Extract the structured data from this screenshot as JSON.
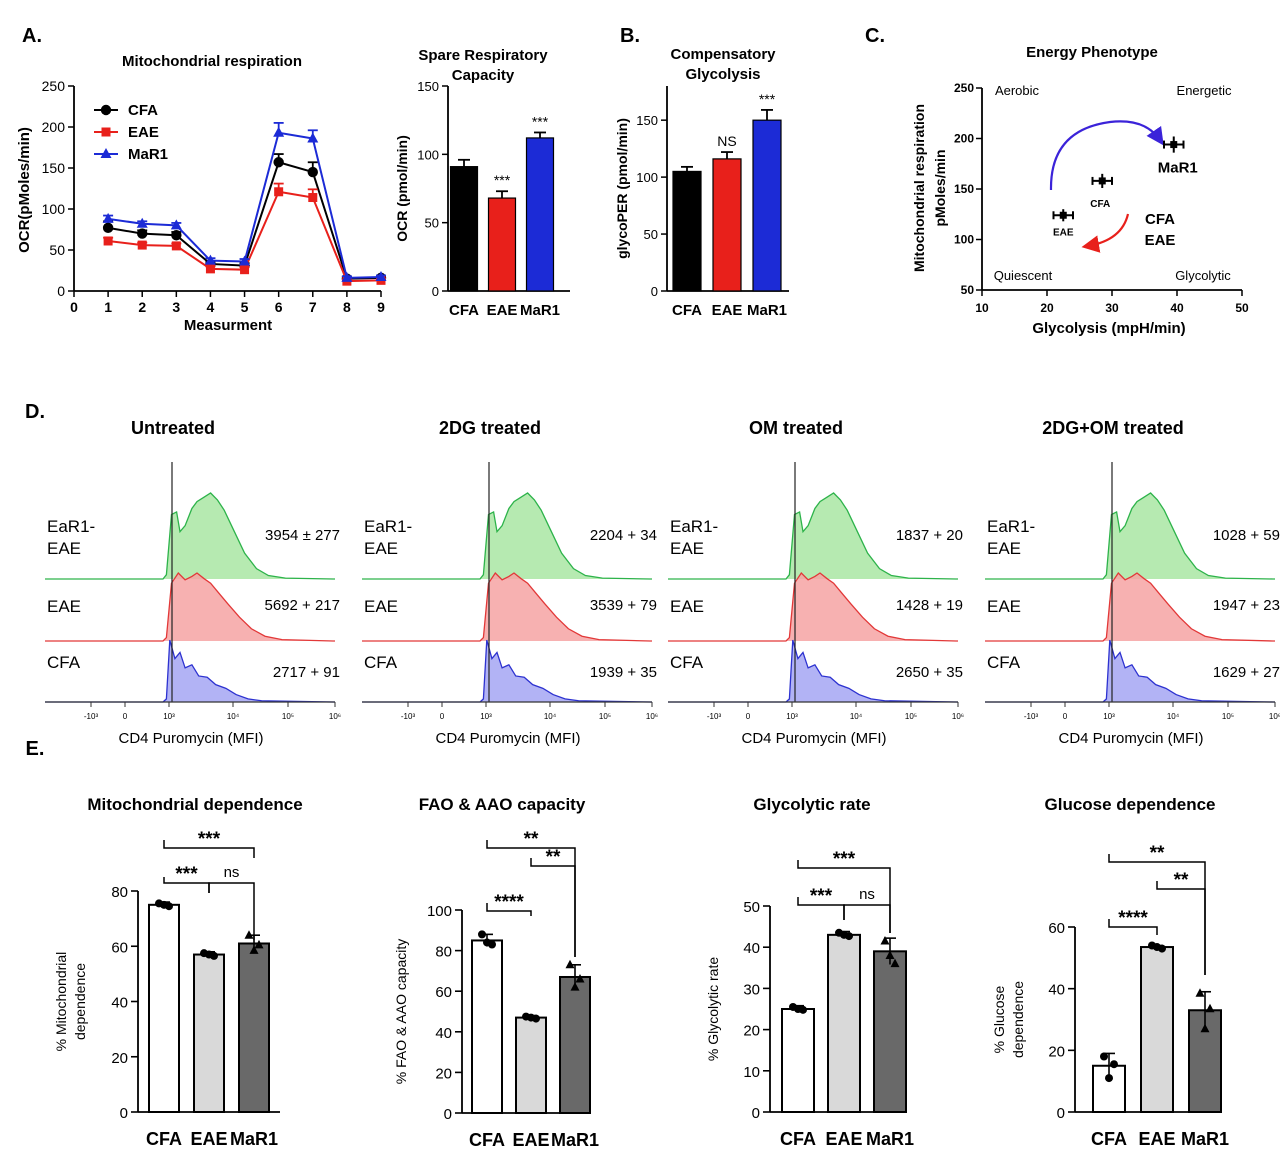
{
  "panel_labels": [
    "A.",
    "B.",
    "C.",
    "D.",
    "E."
  ],
  "chart_data": [
    {
      "id": "A1",
      "type": "line",
      "title": "Mitochondrial respiration",
      "xlabel": "Measurment",
      "ylabel": "OCR(pMoles/min)",
      "xlim": [
        0,
        9
      ],
      "ylim": [
        0,
        250
      ],
      "xticks": [
        "0",
        "1",
        "2",
        "3",
        "4",
        "5",
        "6",
        "7",
        "8",
        "9"
      ],
      "yticks": [
        "0",
        "50",
        "100",
        "150",
        "200",
        "250"
      ],
      "x": [
        1,
        2,
        3,
        4,
        5,
        6,
        7,
        8,
        9
      ],
      "series": [
        {
          "name": "CFA",
          "color": "#000000",
          "marker": "circle",
          "values": [
            77,
            70,
            68,
            33,
            31,
            157,
            145,
            15,
            16
          ],
          "err": [
            8,
            4,
            4,
            3,
            3,
            10,
            12,
            2,
            2
          ]
        },
        {
          "name": "EAE",
          "color": "#e8201b",
          "marker": "square",
          "values": [
            61,
            56,
            55,
            27,
            26,
            121,
            114,
            12,
            13
          ],
          "err": [
            4,
            3,
            3,
            3,
            3,
            10,
            10,
            2,
            2
          ]
        },
        {
          "name": "MaR1",
          "color": "#1c2bd6",
          "marker": "triangle",
          "values": [
            88,
            82,
            80,
            37,
            36,
            193,
            186,
            16,
            17
          ],
          "err": [
            4,
            3,
            3,
            3,
            3,
            12,
            10,
            2,
            2
          ]
        }
      ]
    },
    {
      "id": "A2",
      "type": "bar",
      "title_lines": [
        "Spare Respiratory",
        "Capacity"
      ],
      "ylabel": "OCR (pmol/min)",
      "ylim": [
        0,
        150
      ],
      "yticks": [
        "0",
        "50",
        "100",
        "150"
      ],
      "categories": [
        "CFA",
        "EAE",
        "MaR1"
      ],
      "values": [
        91,
        68,
        112
      ],
      "err": [
        5,
        5,
        4
      ],
      "colors": [
        "#000000",
        "#e8201b",
        "#1c2bd6"
      ],
      "annotations": [
        "",
        "***",
        "***"
      ]
    },
    {
      "id": "B",
      "type": "bar",
      "title_lines": [
        "Compensatory",
        "Glycolysis"
      ],
      "ylabel": "glycoPER (pmol/min)",
      "ylim": [
        0,
        180
      ],
      "yticks": [
        "0",
        "50",
        "100",
        "150"
      ],
      "categories": [
        "CFA",
        "EAE",
        "MaR1"
      ],
      "values": [
        105,
        116,
        150
      ],
      "err": [
        4,
        6,
        9
      ],
      "colors": [
        "#000000",
        "#e8201b",
        "#1c2bd6"
      ],
      "annotations": [
        "",
        "NS",
        "***"
      ]
    },
    {
      "id": "C",
      "type": "scatter",
      "title": "Energy Phenotype",
      "xlabel": "Glycolysis (mpH/min)",
      "ylabel_lines": [
        "Mitochondrial respiration",
        "pMoles/min"
      ],
      "xlim": [
        10,
        50
      ],
      "ylim": [
        50,
        250
      ],
      "xticks": [
        "10",
        "20",
        "30",
        "40",
        "50"
      ],
      "yticks": [
        "50",
        "100",
        "150",
        "200",
        "250"
      ],
      "quadrants": [
        "Aerobic",
        "Energetic",
        "Quiescent",
        "Glycolytic"
      ],
      "points": [
        {
          "name": "CFA",
          "x": 28.5,
          "y": 158,
          "xerr": 1.5,
          "yerr": 7
        },
        {
          "name": "EAE",
          "x": 22.5,
          "y": 124,
          "xerr": 1.5,
          "yerr": 6
        },
        {
          "name": "MaR1",
          "x": 39.5,
          "y": 194,
          "xerr": 1.5,
          "yerr": 8
        }
      ],
      "arrow_labels": [
        "CFA",
        "EAE"
      ]
    },
    {
      "id": "D",
      "type": "histogram",
      "xlabel": "CD4 Puromycin (MFI)",
      "xticks": [
        "-10³",
        "0",
        "10³",
        "10⁴",
        "10⁵",
        "10⁶"
      ],
      "panels": [
        {
          "title": "Untreated",
          "rows": [
            {
              "label": [
                "EaR1-",
                "EAE"
              ],
              "stat": "3954 ± 277",
              "color": "green"
            },
            {
              "label": [
                "EAE"
              ],
              "stat": "5692 + 217",
              "color": "red"
            },
            {
              "label": [
                "CFA"
              ],
              "stat": "2717 + 91",
              "color": "blue"
            }
          ]
        },
        {
          "title": "2DG treated",
          "rows": [
            {
              "label": [
                "EaR1-",
                "EAE"
              ],
              "stat": "2204 + 34",
              "color": "green"
            },
            {
              "label": [
                "EAE"
              ],
              "stat": "3539 + 79",
              "color": "red"
            },
            {
              "label": [
                "CFA"
              ],
              "stat": "1939 + 35",
              "color": "blue"
            }
          ]
        },
        {
          "title": "OM treated",
          "rows": [
            {
              "label": [
                "EaR1-",
                "EAE"
              ],
              "stat": "1837 + 20",
              "color": "green"
            },
            {
              "label": [
                "EAE"
              ],
              "stat": "1428 + 19",
              "color": "red"
            },
            {
              "label": [
                "CFA"
              ],
              "stat": "2650 + 35",
              "color": "blue"
            }
          ]
        },
        {
          "title": "2DG+OM treated",
          "rows": [
            {
              "label": [
                "EaR1-",
                "EAE"
              ],
              "stat": "1028 + 59",
              "color": "green"
            },
            {
              "label": [
                "EAE"
              ],
              "stat": "1947 + 23",
              "color": "red"
            },
            {
              "label": [
                "CFA"
              ],
              "stat": "1629 + 27",
              "color": "blue"
            }
          ]
        }
      ]
    },
    {
      "id": "E1",
      "type": "bar",
      "title": "Mitochondrial dependence",
      "ylabel_lines": [
        "% Mitochondrial",
        "dependence"
      ],
      "ylim": [
        0,
        80
      ],
      "yticks": [
        "0",
        "20",
        "40",
        "60",
        "80"
      ],
      "categories": [
        "CFA",
        "EAE",
        "MaR1"
      ],
      "values": [
        75,
        57,
        61
      ],
      "err": [
        1,
        1,
        3
      ],
      "points": [
        [
          75.5,
          75,
          74.5
        ],
        [
          57.5,
          57,
          56.5
        ],
        [
          64,
          58.5,
          60.5
        ]
      ],
      "fills": [
        "#ffffff",
        "#d9d9d9",
        "#696969"
      ],
      "brackets": [
        [
          "CFA",
          "EAE",
          "***"
        ],
        [
          "EAE",
          "MaR1",
          "ns"
        ],
        [
          "CFA",
          "MaR1",
          "***"
        ]
      ]
    },
    {
      "id": "E2",
      "type": "bar",
      "title": "FAO & AAO capacity",
      "ylabel": "% FAO & AAO capacity",
      "ylim": [
        0,
        100
      ],
      "yticks": [
        "0",
        "20",
        "40",
        "60",
        "80",
        "100"
      ],
      "categories": [
        "CFA",
        "EAE",
        "MaR1"
      ],
      "values": [
        85,
        47,
        67
      ],
      "err": [
        3,
        1,
        6
      ],
      "points": [
        [
          88,
          84,
          83
        ],
        [
          47.5,
          47,
          46.5
        ],
        [
          73,
          62,
          66
        ]
      ],
      "fills": [
        "#ffffff",
        "#d9d9d9",
        "#696969"
      ],
      "brackets": [
        [
          "CFA",
          "EAE",
          "****"
        ],
        [
          "EAE",
          "MaR1",
          "**"
        ],
        [
          "CFA",
          "MaR1",
          "**"
        ]
      ]
    },
    {
      "id": "E3",
      "type": "bar",
      "title": "Glycolytic rate",
      "ylabel": "% Glycolytic rate",
      "ylim": [
        0,
        50
      ],
      "yticks": [
        "0",
        "10",
        "20",
        "30",
        "40",
        "50"
      ],
      "categories": [
        "CFA",
        "EAE",
        "MaR1"
      ],
      "values": [
        25,
        43,
        39
      ],
      "err": [
        0.8,
        0.8,
        3.2
      ],
      "points": [
        [
          25.5,
          25,
          24.8
        ],
        [
          43.5,
          43,
          42.7
        ],
        [
          41.5,
          38,
          36
        ]
      ],
      "fills": [
        "#ffffff",
        "#d9d9d9",
        "#696969"
      ],
      "brackets": [
        [
          "CFA",
          "EAE",
          "***"
        ],
        [
          "EAE",
          "MaR1",
          "ns"
        ],
        [
          "CFA",
          "MaR1",
          "***"
        ]
      ]
    },
    {
      "id": "E4",
      "type": "bar",
      "title": "Glucose dependence",
      "ylabel_lines": [
        "% Glucose",
        "dependence"
      ],
      "ylim": [
        0,
        60
      ],
      "yticks": [
        "0",
        "20",
        "40",
        "60"
      ],
      "categories": [
        "CFA",
        "EAE",
        "MaR1"
      ],
      "values": [
        15,
        53.5,
        33
      ],
      "err": [
        4,
        0.5,
        6
      ],
      "points": [
        [
          18,
          11,
          15.5
        ],
        [
          54,
          53.5,
          53
        ],
        [
          38.5,
          27,
          33.5
        ]
      ],
      "fills": [
        "#ffffff",
        "#d9d9d9",
        "#696969"
      ],
      "brackets": [
        [
          "CFA",
          "EAE",
          "****"
        ],
        [
          "EAE",
          "MaR1",
          "**"
        ],
        [
          "CFA",
          "MaR1",
          "**"
        ]
      ]
    }
  ]
}
